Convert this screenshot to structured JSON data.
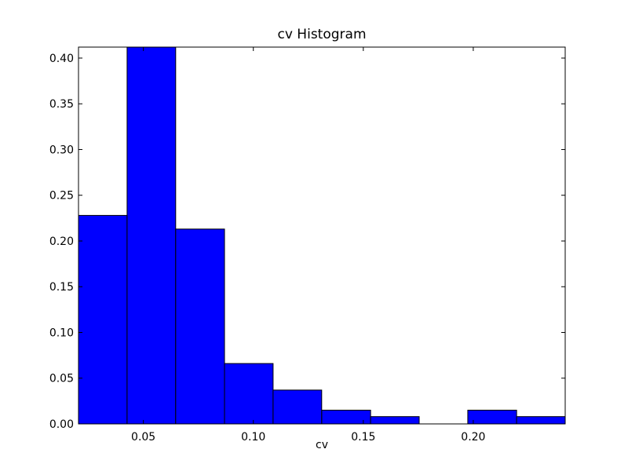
{
  "chart_data": {
    "type": "bar",
    "title": "cv Histogram",
    "xlabel": "cv",
    "ylabel": "",
    "xlim": [
      0.0205,
      0.2418
    ],
    "ylim": [
      0.0,
      0.412
    ],
    "bins": [
      {
        "x0": 0.0205,
        "x1": 0.0426,
        "value": 0.228
      },
      {
        "x0": 0.0426,
        "x1": 0.0647,
        "value": 0.412
      },
      {
        "x0": 0.0647,
        "x1": 0.0869,
        "value": 0.213
      },
      {
        "x0": 0.0869,
        "x1": 0.109,
        "value": 0.066
      },
      {
        "x0": 0.109,
        "x1": 0.1311,
        "value": 0.037
      },
      {
        "x0": 0.1311,
        "x1": 0.1533,
        "value": 0.015
      },
      {
        "x0": 0.1533,
        "x1": 0.1754,
        "value": 0.008
      },
      {
        "x0": 0.1754,
        "x1": 0.1975,
        "value": 0.0
      },
      {
        "x0": 0.1975,
        "x1": 0.2197,
        "value": 0.015
      },
      {
        "x0": 0.2197,
        "x1": 0.2418,
        "value": 0.008
      }
    ],
    "xticks": [
      "0.05",
      "0.10",
      "0.15",
      "0.20"
    ],
    "yticks": [
      "0.00",
      "0.05",
      "0.10",
      "0.15",
      "0.20",
      "0.25",
      "0.30",
      "0.35",
      "0.40"
    ],
    "bar_color": "#0000ff",
    "edge_color": "#000000",
    "grid": false
  }
}
